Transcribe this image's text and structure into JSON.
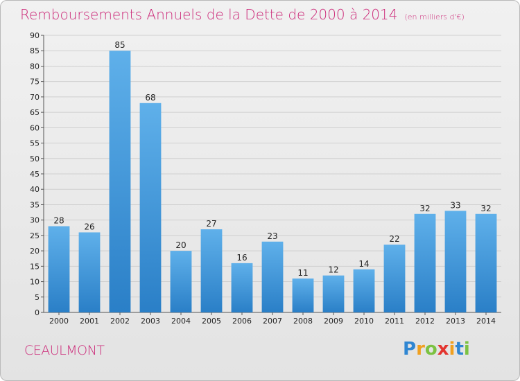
{
  "title": "Remboursements Annuels de la Dette de 2000 à 2014",
  "unit": "(en milliers d'€)",
  "commune": "CEAULMONT",
  "logo": {
    "text": "Proxiti",
    "letters": [
      {
        "ch": "P",
        "color": "#2f86d2"
      },
      {
        "ch": "r",
        "color": "#f0a020"
      },
      {
        "ch": "o",
        "color": "#7cc242"
      },
      {
        "ch": "x",
        "color": "#e3342f"
      },
      {
        "ch": "i",
        "color": "#f0a020"
      },
      {
        "ch": "t",
        "color": "#2f86d2"
      },
      {
        "ch": "i",
        "color": "#7cc242"
      }
    ]
  },
  "colors": {
    "bar_light": "#5fb0ea",
    "bar_dark": "#2a7fc7",
    "accent": "#cc2a79"
  },
  "chart_data": {
    "type": "bar",
    "categories": [
      "2000",
      "2001",
      "2002",
      "2003",
      "2004",
      "2005",
      "2006",
      "2007",
      "2008",
      "2009",
      "2010",
      "2011",
      "2012",
      "2013",
      "2014"
    ],
    "values": [
      28,
      26,
      85,
      68,
      20,
      27,
      16,
      23,
      11,
      12,
      14,
      22,
      32,
      33,
      32
    ],
    "ylim": [
      0,
      90
    ],
    "yticks": [
      0,
      5,
      10,
      15,
      20,
      25,
      30,
      35,
      40,
      45,
      50,
      55,
      60,
      65,
      70,
      75,
      80,
      85,
      90
    ],
    "grid": true
  }
}
